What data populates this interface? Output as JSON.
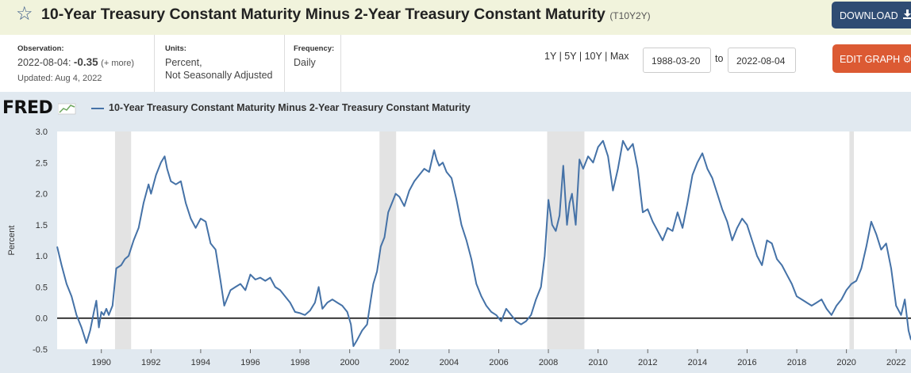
{
  "header": {
    "title": "10-Year Treasury Constant Maturity Minus 2-Year Treasury Constant Maturity",
    "series_id": "(T10Y2Y)",
    "star_icon": "star-outline-icon",
    "download_label": "DOWNLOAD",
    "download_icon": "download-icon"
  },
  "info": {
    "observation_label": "Observation:",
    "observation_date": "2022-08-04:",
    "observation_value": "-0.35",
    "observation_more": "(+ more)",
    "updated": "Updated: Aug 4, 2022",
    "units_label": "Units:",
    "units_line1": "Percent,",
    "units_line2": "Not Seasonally Adjusted",
    "frequency_label": "Frequency:",
    "frequency_value": "Daily"
  },
  "controls": {
    "range_1y": "1Y",
    "range_5y": "5Y",
    "range_10y": "10Y",
    "range_max": "Max",
    "separator": "|",
    "start_date": "1988-03-20",
    "to_label": "to",
    "end_date": "2022-08-04",
    "edit_label": "EDIT GRAPH",
    "edit_icon": "gear-icon"
  },
  "chart_data": {
    "type": "line",
    "logo": "FRED",
    "legend": "10-Year Treasury Constant Maturity Minus 2-Year Treasury Constant Maturity",
    "ylabel": "Percent",
    "xlim": [
      1988.22,
      2022.6
    ],
    "ylim": [
      -0.5,
      3.0
    ],
    "y_ticks": [
      3.0,
      2.5,
      2.0,
      1.5,
      1.0,
      0.5,
      0.0,
      -0.5
    ],
    "y_tick_labels": [
      "3.0",
      "2.5",
      "2.0",
      "1.5",
      "1.0",
      "0.5",
      "0.0",
      "-0.5"
    ],
    "x_ticks": [
      1990,
      1992,
      1994,
      1996,
      1998,
      2000,
      2002,
      2004,
      2006,
      2008,
      2010,
      2012,
      2014,
      2016,
      2018,
      2020,
      2022
    ],
    "x_tick_labels": [
      "1990",
      "1992",
      "1994",
      "1996",
      "1998",
      "2000",
      "2002",
      "2004",
      "2006",
      "2008",
      "2010",
      "2012",
      "2014",
      "2016",
      "2018",
      "2020",
      "2022"
    ],
    "recessions": [
      [
        1990.55,
        1991.2
      ],
      [
        2001.2,
        2001.87
      ],
      [
        2007.95,
        2009.45
      ],
      [
        2020.12,
        2020.3
      ]
    ],
    "zero_line": 0.0,
    "series_color": "#4572a7",
    "series": [
      {
        "x": [
          1988.22,
          1988.4,
          1988.6,
          1988.8,
          1989.0,
          1989.2,
          1989.4,
          1989.55,
          1989.7,
          1989.8,
          1989.9,
          1990.0,
          1990.1,
          1990.2,
          1990.3,
          1990.45,
          1990.6,
          1990.8,
          1990.95,
          1991.1,
          1991.3,
          1991.5,
          1991.7,
          1991.9,
          1992.0,
          1992.2,
          1992.4,
          1992.55,
          1992.65,
          1992.8,
          1993.0,
          1993.2,
          1993.4,
          1993.6,
          1993.8,
          1994.0,
          1994.2,
          1994.4,
          1994.6,
          1994.8,
          1994.95,
          1995.2,
          1995.4,
          1995.6,
          1995.8,
          1996.0,
          1996.2,
          1996.4,
          1996.6,
          1996.8,
          1997.0,
          1997.2,
          1997.4,
          1997.6,
          1997.8,
          1998.0,
          1998.2,
          1998.4,
          1998.6,
          1998.75,
          1998.9,
          1999.1,
          1999.3,
          1999.5,
          1999.7,
          1999.9,
          2000.05,
          2000.15,
          2000.3,
          2000.5,
          2000.7,
          2000.85,
          2000.95,
          2001.1,
          2001.25,
          2001.4,
          2001.55,
          2001.7,
          2001.85,
          2002.0,
          2002.2,
          2002.4,
          2002.6,
          2002.8,
          2003.0,
          2003.2,
          2003.4,
          2003.5,
          2003.6,
          2003.75,
          2003.9,
          2004.1,
          2004.3,
          2004.5,
          2004.7,
          2004.9,
          2005.1,
          2005.3,
          2005.5,
          2005.7,
          2005.9,
          2006.1,
          2006.3,
          2006.5,
          2006.7,
          2006.9,
          2007.1,
          2007.3,
          2007.5,
          2007.7,
          2007.85,
          2008.0,
          2008.15,
          2008.3,
          2008.45,
          2008.6,
          2008.75,
          2008.85,
          2008.95,
          2009.1,
          2009.25,
          2009.4,
          2009.6,
          2009.8,
          2010.0,
          2010.2,
          2010.4,
          2010.6,
          2010.8,
          2011.0,
          2011.2,
          2011.4,
          2011.6,
          2011.8,
          2012.0,
          2012.2,
          2012.4,
          2012.6,
          2012.8,
          2013.0,
          2013.2,
          2013.4,
          2013.6,
          2013.8,
          2014.0,
          2014.2,
          2014.4,
          2014.6,
          2014.8,
          2015.0,
          2015.2,
          2015.4,
          2015.6,
          2015.8,
          2016.0,
          2016.2,
          2016.4,
          2016.6,
          2016.8,
          2017.0,
          2017.2,
          2017.4,
          2017.6,
          2017.8,
          2018.0,
          2018.2,
          2018.4,
          2018.6,
          2018.8,
          2019.0,
          2019.2,
          2019.4,
          2019.6,
          2019.8,
          2020.0,
          2020.2,
          2020.4,
          2020.6,
          2020.8,
          2021.0,
          2021.2,
          2021.4,
          2021.6,
          2021.8,
          2022.0,
          2022.2,
          2022.35,
          2022.5,
          2022.6
        ],
        "values": [
          1.15,
          0.85,
          0.55,
          0.35,
          0.05,
          -0.15,
          -0.4,
          -0.2,
          0.1,
          0.28,
          -0.15,
          0.1,
          0.05,
          0.15,
          0.05,
          0.2,
          0.8,
          0.85,
          0.95,
          1.0,
          1.25,
          1.45,
          1.85,
          2.15,
          2.0,
          2.3,
          2.5,
          2.6,
          2.4,
          2.2,
          2.15,
          2.2,
          1.85,
          1.6,
          1.45,
          1.6,
          1.55,
          1.2,
          1.1,
          0.6,
          0.2,
          0.45,
          0.5,
          0.55,
          0.45,
          0.7,
          0.62,
          0.65,
          0.6,
          0.65,
          0.5,
          0.45,
          0.35,
          0.25,
          0.1,
          0.08,
          0.05,
          0.12,
          0.25,
          0.5,
          0.15,
          0.25,
          0.3,
          0.25,
          0.2,
          0.1,
          -0.1,
          -0.45,
          -0.35,
          -0.2,
          -0.1,
          0.3,
          0.55,
          0.75,
          1.15,
          1.3,
          1.7,
          1.85,
          2.0,
          1.95,
          1.8,
          2.05,
          2.2,
          2.3,
          2.4,
          2.35,
          2.7,
          2.55,
          2.45,
          2.5,
          2.35,
          2.25,
          1.9,
          1.5,
          1.25,
          0.95,
          0.55,
          0.35,
          0.2,
          0.1,
          0.05,
          -0.05,
          0.15,
          0.05,
          -0.05,
          -0.1,
          -0.05,
          0.05,
          0.3,
          0.5,
          1.0,
          1.9,
          1.5,
          1.4,
          1.65,
          2.45,
          1.5,
          1.85,
          2.0,
          1.5,
          2.55,
          2.4,
          2.6,
          2.5,
          2.75,
          2.85,
          2.6,
          2.05,
          2.4,
          2.85,
          2.7,
          2.8,
          2.4,
          1.7,
          1.75,
          1.55,
          1.4,
          1.25,
          1.45,
          1.4,
          1.7,
          1.45,
          1.85,
          2.3,
          2.5,
          2.65,
          2.4,
          2.25,
          2.0,
          1.75,
          1.55,
          1.25,
          1.45,
          1.6,
          1.5,
          1.25,
          1.0,
          0.85,
          1.25,
          1.2,
          0.95,
          0.85,
          0.7,
          0.55,
          0.35,
          0.3,
          0.25,
          0.2,
          0.25,
          0.3,
          0.15,
          0.05,
          0.2,
          0.3,
          0.45,
          0.55,
          0.6,
          0.8,
          1.15,
          1.55,
          1.35,
          1.1,
          1.2,
          0.8,
          0.2,
          0.05,
          0.3,
          -0.2,
          -0.35
        ]
      }
    ]
  }
}
